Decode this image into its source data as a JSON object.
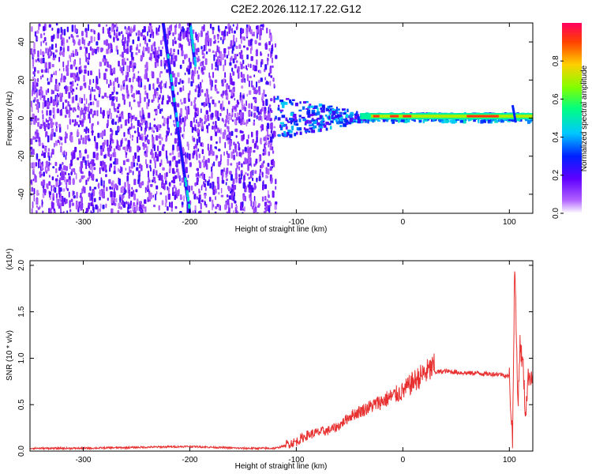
{
  "title": "C2E2.2026.112.17.22.G12",
  "chart_data": [
    {
      "type": "heatmap",
      "xlabel": "Height of straight line (km)",
      "ylabel": "Frequency (Hz)",
      "xlim": [
        -350,
        122
      ],
      "ylim": [
        -50,
        50
      ],
      "xticks": [
        "-300",
        "-200",
        "-100",
        "0",
        "100"
      ],
      "yticks": [
        "40",
        "20",
        "0",
        "-20",
        "-40"
      ],
      "grid": false,
      "colorbar": {
        "label": "Normalized spectral amplitude",
        "range": [
          0,
          1
        ],
        "ticks": [
          "0.0",
          "0.2",
          "0.4",
          "0.6",
          "0.8"
        ],
        "colors": [
          "#ffffff",
          "#b060ff",
          "#6000ff",
          "#0020ff",
          "#00c8ff",
          "#00ff80",
          "#80ff00",
          "#ffd000",
          "#ff4000",
          "#ff0060"
        ]
      },
      "features": {
        "noise_region_x": [
          -350,
          -120
        ],
        "main_streak": [
          [
            -225,
            50
          ],
          [
            -200,
            -50
          ]
        ],
        "secondary_streak": [
          [
            -200,
            50
          ],
          [
            -195,
            28
          ]
        ],
        "carrier_line_x": [
          -120,
          122
        ],
        "carrier_line_freq_hz": 1
      }
    },
    {
      "type": "line",
      "xlabel": "Height of straight line (km)",
      "ylabel": "SNR (10 * v/v)",
      "ylabel_scale": "(x10⁴)",
      "xlim": [
        -350,
        122
      ],
      "ylim": [
        0,
        2.05
      ],
      "xticks": [
        "-300",
        "-200",
        "-100",
        "0",
        "100"
      ],
      "yticks": [
        "0.0",
        "0.5",
        "1.0",
        "1.5",
        "2.0"
      ],
      "grid": false,
      "line_color": "#e83030",
      "series": [
        {
          "x": [
            -350,
            -300,
            -250,
            -200,
            -150,
            -120,
            -100,
            -90,
            -80,
            -70,
            -60,
            -50,
            -40,
            -30,
            -20,
            -10,
            0,
            10,
            20,
            30,
            40,
            50,
            60,
            70,
            80,
            90,
            95,
            100,
            103,
            105,
            108,
            110,
            113,
            115,
            118,
            122
          ],
          "values": [
            0.02,
            0.02,
            0.03,
            0.04,
            0.02,
            0.02,
            0.08,
            0.15,
            0.18,
            0.2,
            0.25,
            0.35,
            0.4,
            0.45,
            0.5,
            0.55,
            0.6,
            0.7,
            0.78,
            0.85,
            0.86,
            0.85,
            0.84,
            0.84,
            0.83,
            0.83,
            0.82,
            0.8,
            0.1,
            2.05,
            0.5,
            1.15,
            0.9,
            0.4,
            0.82,
            0.82
          ]
        }
      ]
    }
  ]
}
